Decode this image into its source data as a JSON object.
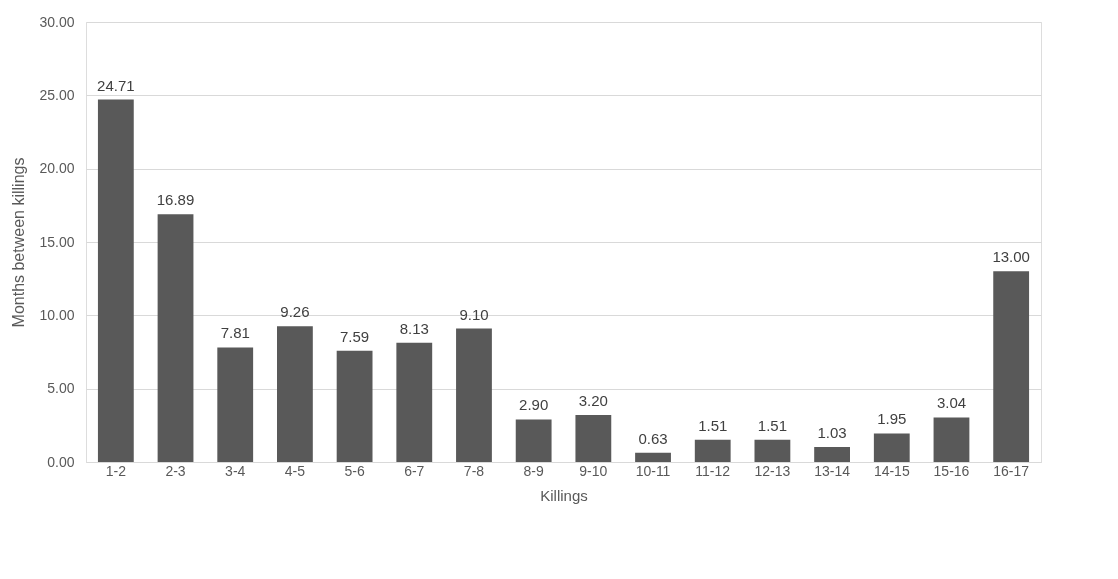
{
  "chart_data": {
    "type": "bar",
    "xlabel": "Killings",
    "ylabel": "Months between killings",
    "categories": [
      "1-2",
      "2-3",
      "3-4",
      "4-5",
      "5-6",
      "6-7",
      "7-8",
      "8-9",
      "9-10",
      "10-11",
      "11-12",
      "12-13",
      "13-14",
      "14-15",
      "15-16",
      "16-17"
    ],
    "values": [
      24.71,
      16.89,
      7.81,
      9.26,
      7.59,
      8.13,
      9.1,
      2.9,
      3.2,
      0.63,
      1.51,
      1.51,
      1.03,
      1.95,
      3.04,
      13.0
    ],
    "value_labels": [
      "24.71",
      "16.89",
      "7.81",
      "9.26",
      "7.59",
      "8.13",
      "9.10",
      "2.90",
      "3.20",
      "0.63",
      "1.51",
      "1.51",
      "1.03",
      "1.95",
      "3.04",
      "13.00"
    ],
    "color": "#595959",
    "ylim": [
      0,
      30
    ],
    "yticks": [
      {
        "value": 0,
        "label": "0.00"
      },
      {
        "value": 5,
        "label": "5.00"
      },
      {
        "value": 10,
        "label": "10.00"
      },
      {
        "value": 15,
        "label": "15.00"
      },
      {
        "value": 20,
        "label": "20.00"
      },
      {
        "value": 25,
        "label": "25.00"
      },
      {
        "value": 30,
        "label": "30.00"
      }
    ],
    "grid": "y"
  }
}
